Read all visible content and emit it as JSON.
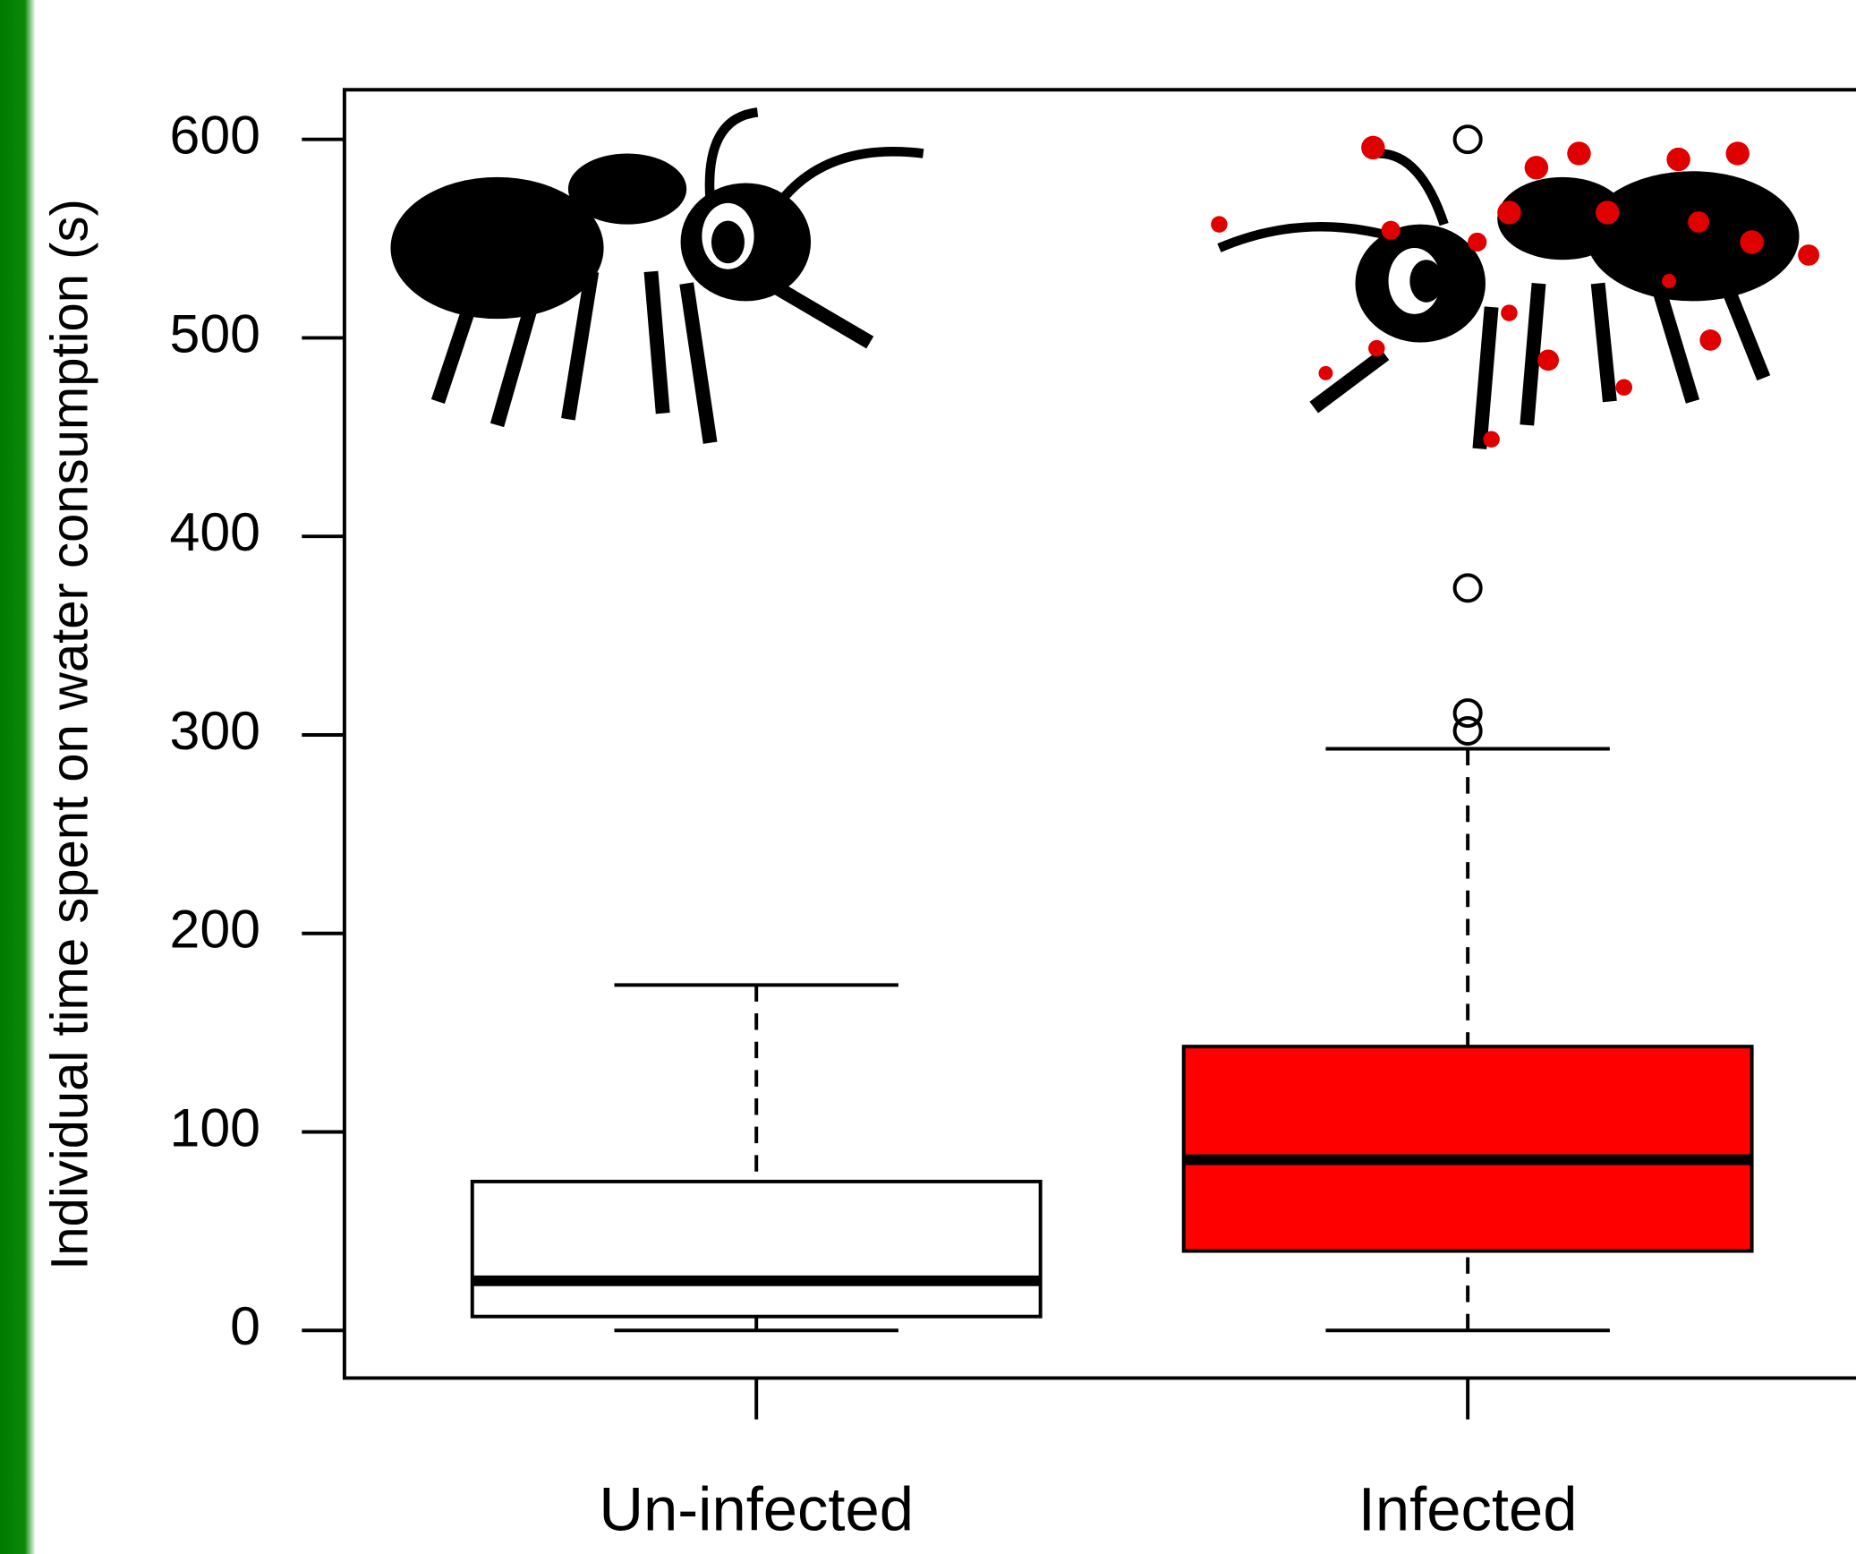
{
  "chart_data": {
    "type": "box",
    "y_label": "Individual time spent on water consumption (s)",
    "categories": [
      "Un-infected",
      "Infected"
    ],
    "colors": [
      "#ffffff",
      "#ff0000"
    ],
    "boxes": [
      {
        "min": 0,
        "q1": 7,
        "median": 25,
        "q3": 75,
        "max": 174,
        "outliers": []
      },
      {
        "min": 0,
        "q1": 40,
        "median": 86,
        "q3": 143,
        "max": 293,
        "outliers": [
          302,
          311,
          374,
          600
        ]
      }
    ],
    "ylim": [
      -24,
      625
    ],
    "yticks": [
      0,
      100,
      200,
      300,
      400,
      500,
      600
    ]
  }
}
